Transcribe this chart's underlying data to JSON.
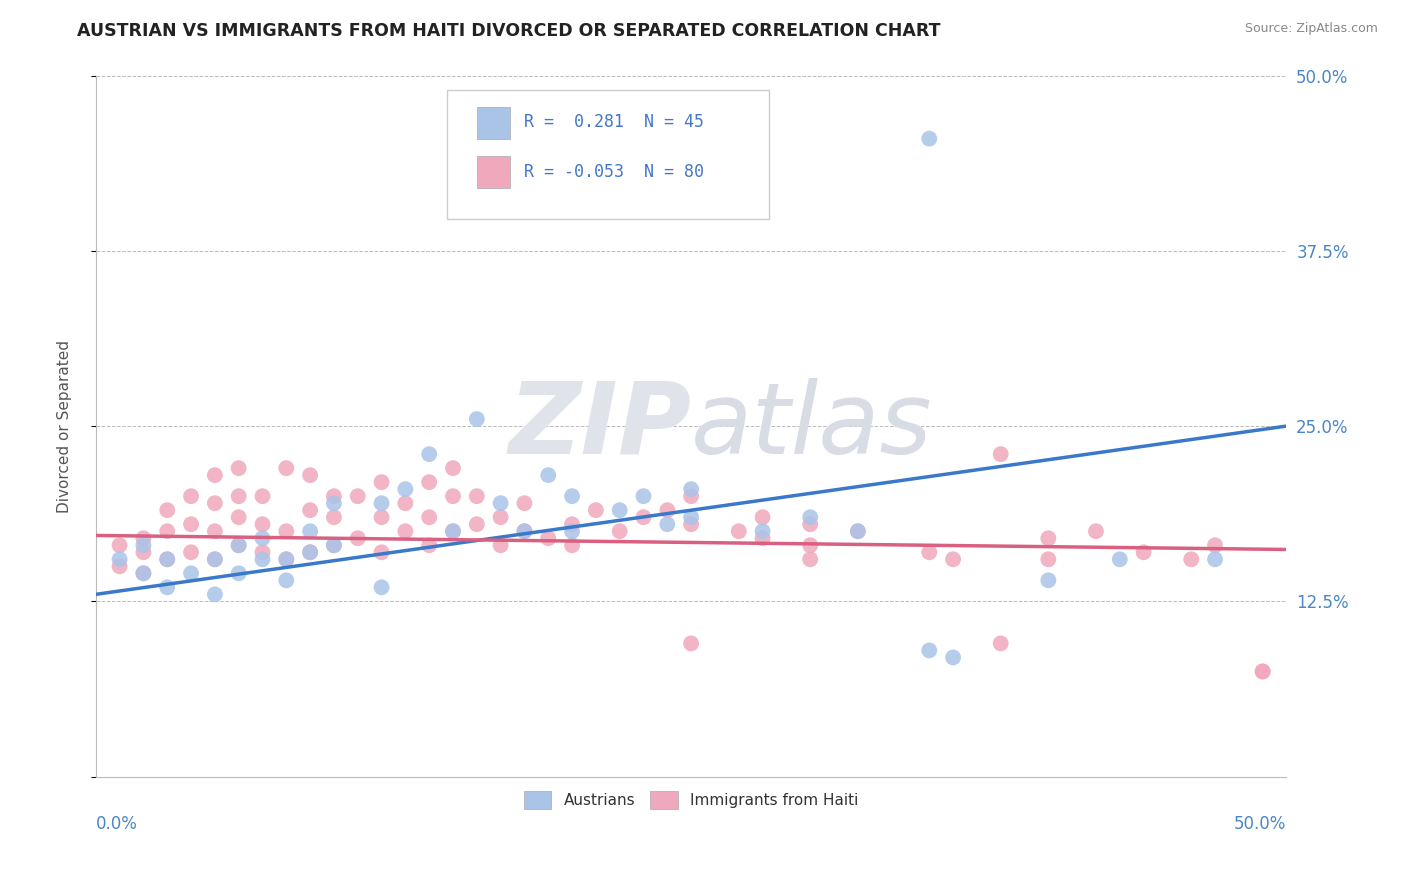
{
  "title": "AUSTRIAN VS IMMIGRANTS FROM HAITI DIVORCED OR SEPARATED CORRELATION CHART",
  "source": "Source: ZipAtlas.com",
  "ylabel": "Divorced or Separated",
  "yticks": [
    0.0,
    0.125,
    0.25,
    0.375,
    0.5
  ],
  "ytick_labels": [
    "",
    "12.5%",
    "25.0%",
    "37.5%",
    "50.0%"
  ],
  "xlim": [
    0.0,
    0.5
  ],
  "ylim": [
    0.0,
    0.5
  ],
  "blue_color": "#aac4e8",
  "pink_color": "#f0a8bc",
  "blue_line_color": "#3a78c9",
  "pink_line_color": "#d96080",
  "legend_R_color": "#4477cc",
  "legend_N_color": "#4477cc",
  "legend_blue_label_R": "R =  0.281",
  "legend_blue_label_N": "N = 45",
  "legend_pink_label_R": "R = -0.053",
  "legend_pink_label_N": "N = 80",
  "legend_austrians": "Austrians",
  "legend_haiti": "Immigrants from Haiti",
  "watermark": "ZIPatlas",
  "blue_R": 0.281,
  "blue_N": 45,
  "pink_R": -0.053,
  "pink_N": 80,
  "blue_line_x0": 0.0,
  "blue_line_y0": 0.13,
  "blue_line_x1": 0.5,
  "blue_line_y1": 0.25,
  "pink_line_x0": 0.0,
  "pink_line_y0": 0.172,
  "pink_line_x1": 0.5,
  "pink_line_y1": 0.162
}
